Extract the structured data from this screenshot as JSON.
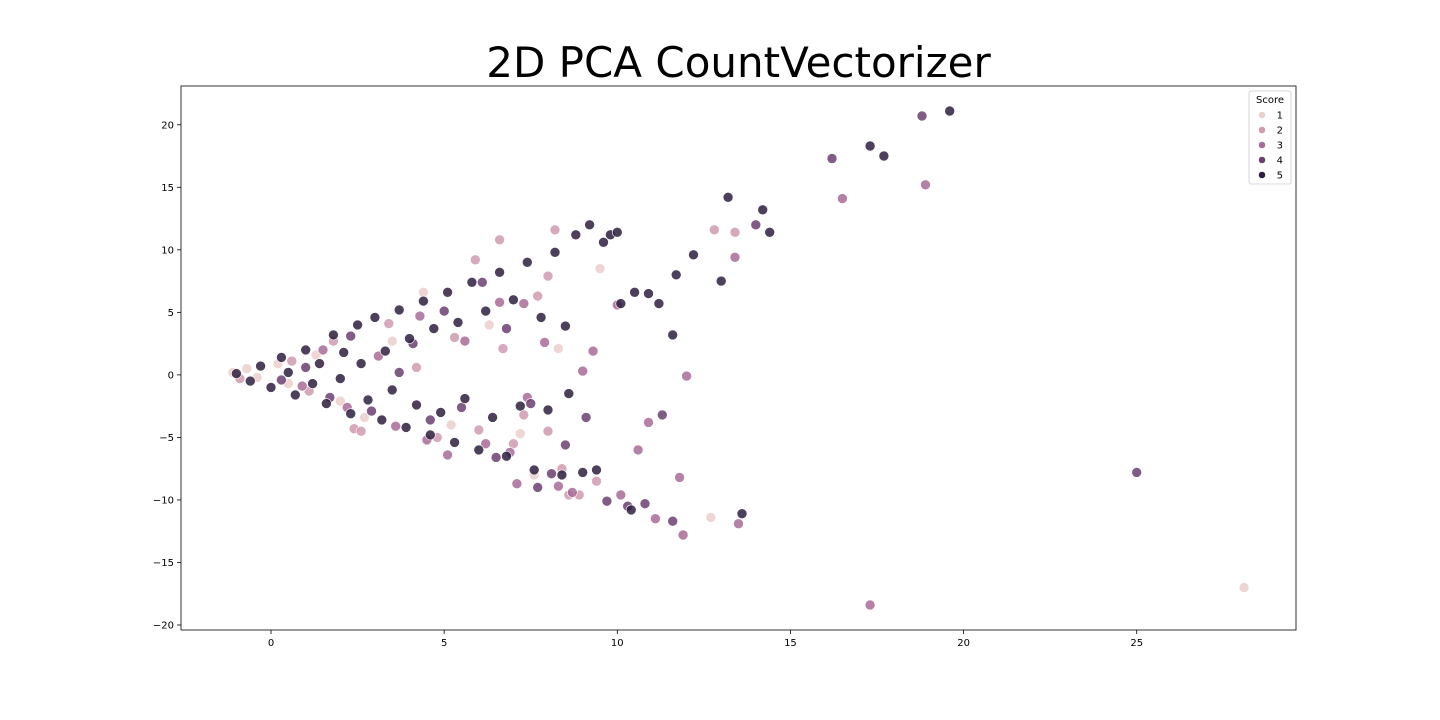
{
  "chart_data": {
    "type": "scatter",
    "title": "2D PCA CountVectorizer",
    "xlabel": "",
    "ylabel": "",
    "xlim": [
      -2.6,
      29.6
    ],
    "ylim": [
      -20.4,
      23.1
    ],
    "xticks": [
      0,
      5,
      10,
      15,
      20,
      25
    ],
    "yticks": [
      -20,
      -15,
      -10,
      -5,
      0,
      5,
      10,
      15,
      20
    ],
    "xtick_labels": [
      "0",
      "5",
      "10",
      "15",
      "20",
      "25"
    ],
    "ytick_labels": [
      "−20",
      "−15",
      "−10",
      "−5",
      "0",
      "5",
      "10",
      "15",
      "20"
    ],
    "grid": false,
    "legend": {
      "title": "Score",
      "placement": "top-right",
      "entries": [
        "1",
        "2",
        "3",
        "4",
        "5"
      ]
    },
    "series": [
      {
        "name": "1",
        "color": "#ebcfcd",
        "points": [
          [
            -1.1,
            0.2
          ],
          [
            -0.7,
            0.5
          ],
          [
            -0.4,
            -0.2
          ],
          [
            0.2,
            0.9
          ],
          [
            0.5,
            -0.7
          ],
          [
            1.3,
            1.6
          ],
          [
            2.0,
            -2.1
          ],
          [
            2.7,
            -3.4
          ],
          [
            3.5,
            2.7
          ],
          [
            4.4,
            6.6
          ],
          [
            5.2,
            -4.0
          ],
          [
            6.3,
            4.0
          ],
          [
            7.2,
            -4.7
          ],
          [
            7.6,
            -8.0
          ],
          [
            8.3,
            2.1
          ],
          [
            9.5,
            8.5
          ],
          [
            12.7,
            -11.4
          ],
          [
            28.1,
            -17.0
          ]
        ]
      },
      {
        "name": "2",
        "color": "#d09ab0",
        "points": [
          [
            -0.9,
            -0.3
          ],
          [
            0.6,
            1.1
          ],
          [
            1.1,
            -1.3
          ],
          [
            1.8,
            2.7
          ],
          [
            2.4,
            -4.3
          ],
          [
            2.6,
            -4.5
          ],
          [
            3.4,
            4.1
          ],
          [
            4.2,
            0.6
          ],
          [
            4.8,
            -5.0
          ],
          [
            5.3,
            3.0
          ],
          [
            5.9,
            9.2
          ],
          [
            6.0,
            -4.4
          ],
          [
            6.6,
            10.8
          ],
          [
            6.7,
            2.1
          ],
          [
            7.0,
            -5.5
          ],
          [
            7.3,
            -3.2
          ],
          [
            7.7,
            6.3
          ],
          [
            8.0,
            7.9
          ],
          [
            8.0,
            -4.5
          ],
          [
            8.2,
            11.6
          ],
          [
            8.4,
            -7.5
          ],
          [
            8.6,
            -9.6
          ],
          [
            8.9,
            -9.6
          ],
          [
            9.4,
            -8.5
          ],
          [
            12.8,
            11.6
          ],
          [
            13.4,
            11.4
          ]
        ]
      },
      {
        "name": "3",
        "color": "#a86b98",
        "points": [
          [
            0.9,
            -0.9
          ],
          [
            1.5,
            2.0
          ],
          [
            2.2,
            -2.6
          ],
          [
            3.1,
            1.5
          ],
          [
            3.6,
            -4.1
          ],
          [
            4.3,
            4.7
          ],
          [
            4.5,
            -5.2
          ],
          [
            5.1,
            -6.4
          ],
          [
            5.6,
            2.7
          ],
          [
            6.2,
            -5.5
          ],
          [
            6.6,
            5.8
          ],
          [
            6.9,
            -6.2
          ],
          [
            7.1,
            -8.7
          ],
          [
            7.3,
            5.7
          ],
          [
            7.4,
            -1.8
          ],
          [
            7.9,
            2.6
          ],
          [
            8.3,
            -8.9
          ],
          [
            8.7,
            -9.4
          ],
          [
            9.0,
            0.3
          ],
          [
            9.3,
            1.9
          ],
          [
            10.0,
            5.6
          ],
          [
            10.1,
            -9.6
          ],
          [
            10.6,
            -6.0
          ],
          [
            10.9,
            -3.8
          ],
          [
            11.1,
            -11.5
          ],
          [
            11.9,
            -12.8
          ],
          [
            11.8,
            -8.2
          ],
          [
            12.0,
            -0.1
          ],
          [
            13.4,
            9.4
          ],
          [
            13.5,
            -11.9
          ],
          [
            16.5,
            14.1
          ],
          [
            17.3,
            -18.4
          ],
          [
            18.9,
            15.2
          ]
        ]
      },
      {
        "name": "4",
        "color": "#6b3f72",
        "points": [
          [
            0.3,
            -0.4
          ],
          [
            1.0,
            0.6
          ],
          [
            1.7,
            -1.8
          ],
          [
            2.3,
            3.1
          ],
          [
            2.9,
            -2.9
          ],
          [
            3.7,
            0.2
          ],
          [
            4.1,
            2.5
          ],
          [
            4.6,
            -3.6
          ],
          [
            5.0,
            5.1
          ],
          [
            5.5,
            -2.6
          ],
          [
            6.1,
            7.4
          ],
          [
            6.5,
            -6.6
          ],
          [
            6.8,
            3.7
          ],
          [
            7.5,
            -2.3
          ],
          [
            7.7,
            -9.0
          ],
          [
            8.1,
            -7.9
          ],
          [
            8.5,
            -5.6
          ],
          [
            9.1,
            -3.4
          ],
          [
            9.7,
            -10.1
          ],
          [
            10.3,
            -10.5
          ],
          [
            10.8,
            -10.3
          ],
          [
            11.3,
            -3.2
          ],
          [
            11.6,
            -11.7
          ],
          [
            14.0,
            12.0
          ],
          [
            16.2,
            17.3
          ],
          [
            18.8,
            20.7
          ],
          [
            25.0,
            -7.8
          ]
        ]
      },
      {
        "name": "5",
        "color": "#2d1e3e",
        "points": [
          [
            -1.0,
            0.1
          ],
          [
            -0.6,
            -0.5
          ],
          [
            -0.3,
            0.7
          ],
          [
            0.0,
            -1.0
          ],
          [
            0.3,
            1.4
          ],
          [
            0.5,
            0.2
          ],
          [
            0.7,
            -1.6
          ],
          [
            1.0,
            2.0
          ],
          [
            1.2,
            -0.7
          ],
          [
            1.4,
            0.9
          ],
          [
            1.6,
            -2.3
          ],
          [
            1.8,
            3.2
          ],
          [
            2.0,
            -0.3
          ],
          [
            2.1,
            1.8
          ],
          [
            2.3,
            -3.1
          ],
          [
            2.5,
            4.0
          ],
          [
            2.6,
            0.9
          ],
          [
            2.8,
            -2.0
          ],
          [
            3.0,
            4.6
          ],
          [
            3.2,
            -3.6
          ],
          [
            3.3,
            1.9
          ],
          [
            3.5,
            -1.2
          ],
          [
            3.7,
            5.2
          ],
          [
            3.9,
            -4.2
          ],
          [
            4.0,
            2.9
          ],
          [
            4.2,
            -2.4
          ],
          [
            4.4,
            5.9
          ],
          [
            4.6,
            -4.8
          ],
          [
            4.7,
            3.7
          ],
          [
            4.9,
            -3.0
          ],
          [
            5.1,
            6.6
          ],
          [
            5.3,
            -5.4
          ],
          [
            5.4,
            4.2
          ],
          [
            5.6,
            -1.9
          ],
          [
            5.8,
            7.4
          ],
          [
            6.0,
            -6.0
          ],
          [
            6.2,
            5.1
          ],
          [
            6.4,
            -3.4
          ],
          [
            6.6,
            8.2
          ],
          [
            6.8,
            -6.5
          ],
          [
            7.0,
            6.0
          ],
          [
            7.2,
            -2.5
          ],
          [
            7.4,
            9.0
          ],
          [
            7.6,
            -7.6
          ],
          [
            7.8,
            4.6
          ],
          [
            8.0,
            -2.8
          ],
          [
            8.2,
            9.8
          ],
          [
            8.4,
            -8.0
          ],
          [
            8.5,
            3.9
          ],
          [
            8.6,
            -1.5
          ],
          [
            8.8,
            11.2
          ],
          [
            9.0,
            -7.8
          ],
          [
            9.2,
            12.0
          ],
          [
            9.4,
            -7.6
          ],
          [
            9.6,
            10.6
          ],
          [
            9.8,
            11.2
          ],
          [
            10.0,
            11.4
          ],
          [
            10.1,
            5.7
          ],
          [
            10.4,
            -10.8
          ],
          [
            10.5,
            6.6
          ],
          [
            10.9,
            6.5
          ],
          [
            11.2,
            5.7
          ],
          [
            11.6,
            3.2
          ],
          [
            11.7,
            8.0
          ],
          [
            12.2,
            9.6
          ],
          [
            13.0,
            7.5
          ],
          [
            13.2,
            14.2
          ],
          [
            14.2,
            13.2
          ],
          [
            14.4,
            11.4
          ],
          [
            13.6,
            -11.1
          ],
          [
            17.3,
            18.3
          ],
          [
            17.7,
            17.5
          ],
          [
            19.6,
            21.1
          ]
        ]
      }
    ]
  }
}
